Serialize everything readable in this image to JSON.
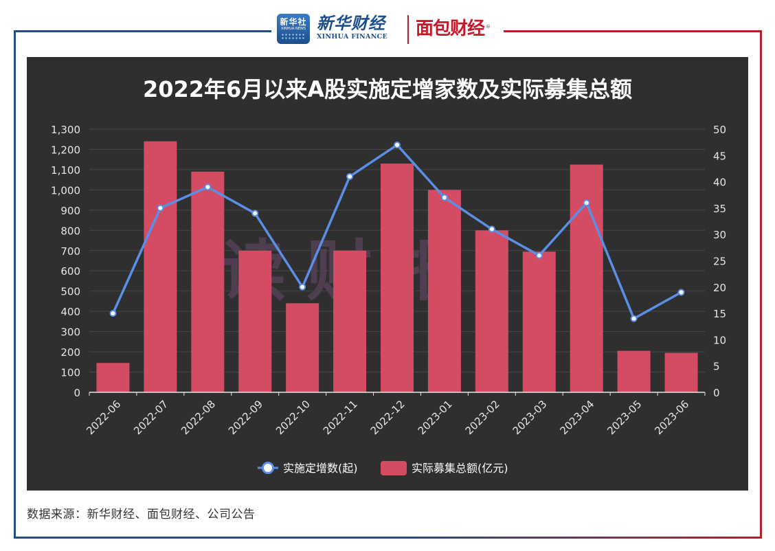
{
  "header": {
    "xinhua_logo_cn": "新华社",
    "xinhua_logo_en": "XINHUA NEWS",
    "xinhua_finance_cn": "新华财经",
    "xinhua_finance_en": "XINHUA FINANCE",
    "mianbao_finance": "面包财经",
    "registered_mark": "®"
  },
  "source_note": "数据来源：新华财经、面包财经、公司公告",
  "watermark": "读财报",
  "colors": {
    "background": "#2f2f2f",
    "bar": "#d34c63",
    "line": "#5b8fe6",
    "frame_left": "#1f4d82",
    "frame_right": "#b1202b"
  },
  "chart_data": {
    "type": "bar",
    "title": "2022年6月以来A股实施定增家数及实际募集总额",
    "categories": [
      "2022-06",
      "2022-07",
      "2022-08",
      "2022-09",
      "2022-10",
      "2022-11",
      "2022-12",
      "2023-01",
      "2023-02",
      "2023-03",
      "2023-04",
      "2023-05",
      "2023-06"
    ],
    "series": [
      {
        "name": "实际募集总额(亿元)",
        "type": "bar",
        "axis": "left",
        "values": [
          145,
          1240,
          1090,
          700,
          440,
          700,
          1130,
          1000,
          800,
          695,
          1125,
          205,
          195
        ]
      },
      {
        "name": "实施定增数(起)",
        "type": "line",
        "axis": "right",
        "values": [
          15,
          35,
          39,
          34,
          20,
          41,
          47,
          37,
          31,
          26,
          36,
          14,
          19
        ]
      }
    ],
    "y_left": {
      "min": 0,
      "max": 1300,
      "ticks": [
        "0",
        "100",
        "200",
        "300",
        "400",
        "500",
        "600",
        "700",
        "800",
        "900",
        "1,000",
        "1,100",
        "1,200",
        "1,300"
      ]
    },
    "y_right": {
      "min": 0,
      "max": 50,
      "ticks": [
        "0",
        "5",
        "10",
        "15",
        "20",
        "25",
        "30",
        "35",
        "40",
        "45",
        "50"
      ]
    },
    "legend_position": "bottom-center",
    "grid": true
  }
}
